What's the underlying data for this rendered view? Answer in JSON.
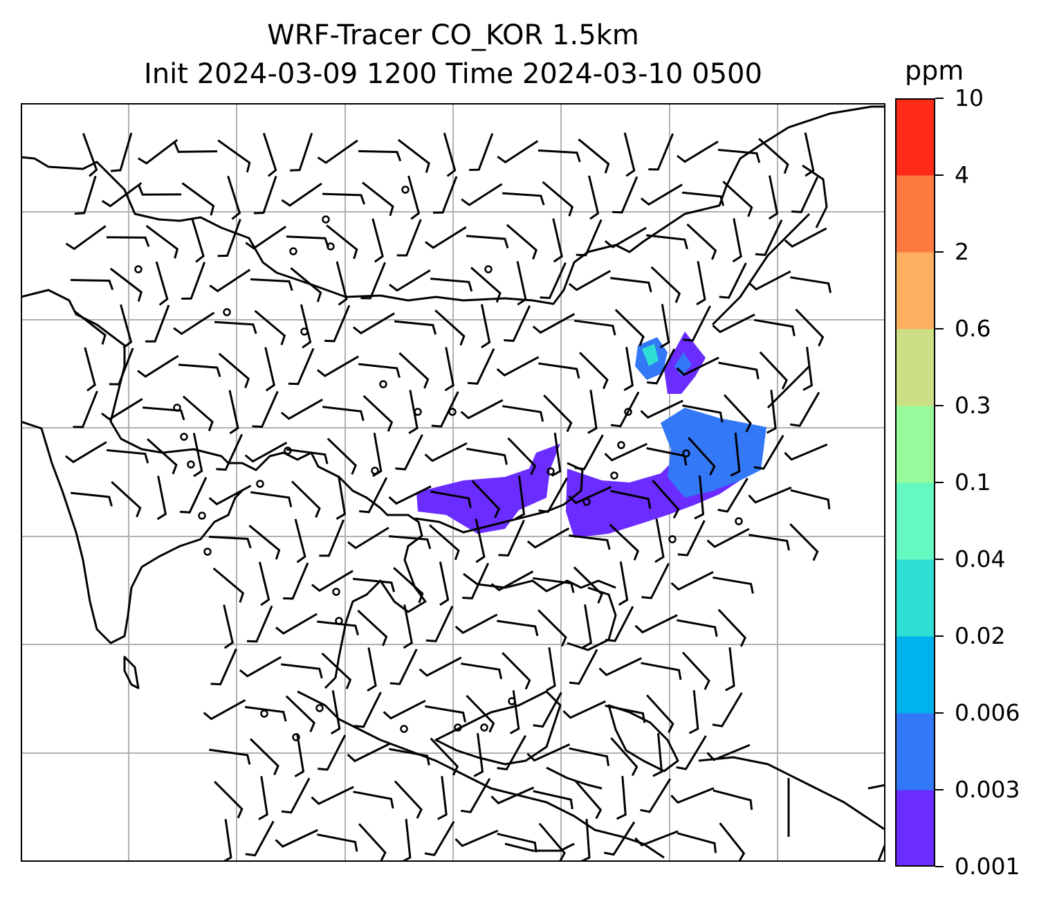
{
  "title": {
    "line1": "WRF-Tracer CO_KOR 1.5km",
    "line2": "Init 2024-03-09 1200 Time 2024-03-10 0500"
  },
  "colorbar": {
    "units": "ppm",
    "ticks": [
      "0.001",
      "0.003",
      "0.006",
      "0.02",
      "0.04",
      "0.1",
      "0.3",
      "0.6",
      "2",
      "4",
      "10"
    ],
    "colors": [
      "#6a2cff",
      "#3378f6",
      "#00b3ec",
      "#2fdfd6",
      "#63f9c0",
      "#97fb9b",
      "#cddf85",
      "#fcaf60",
      "#ff7a3f",
      "#ff2a17"
    ]
  },
  "map": {
    "features": [
      "coastlines",
      "gridlines",
      "wind-barbs",
      "tracer-concentration-field"
    ],
    "gridline_color": "#b0b0b0",
    "coastline_color": "#000000"
  }
}
